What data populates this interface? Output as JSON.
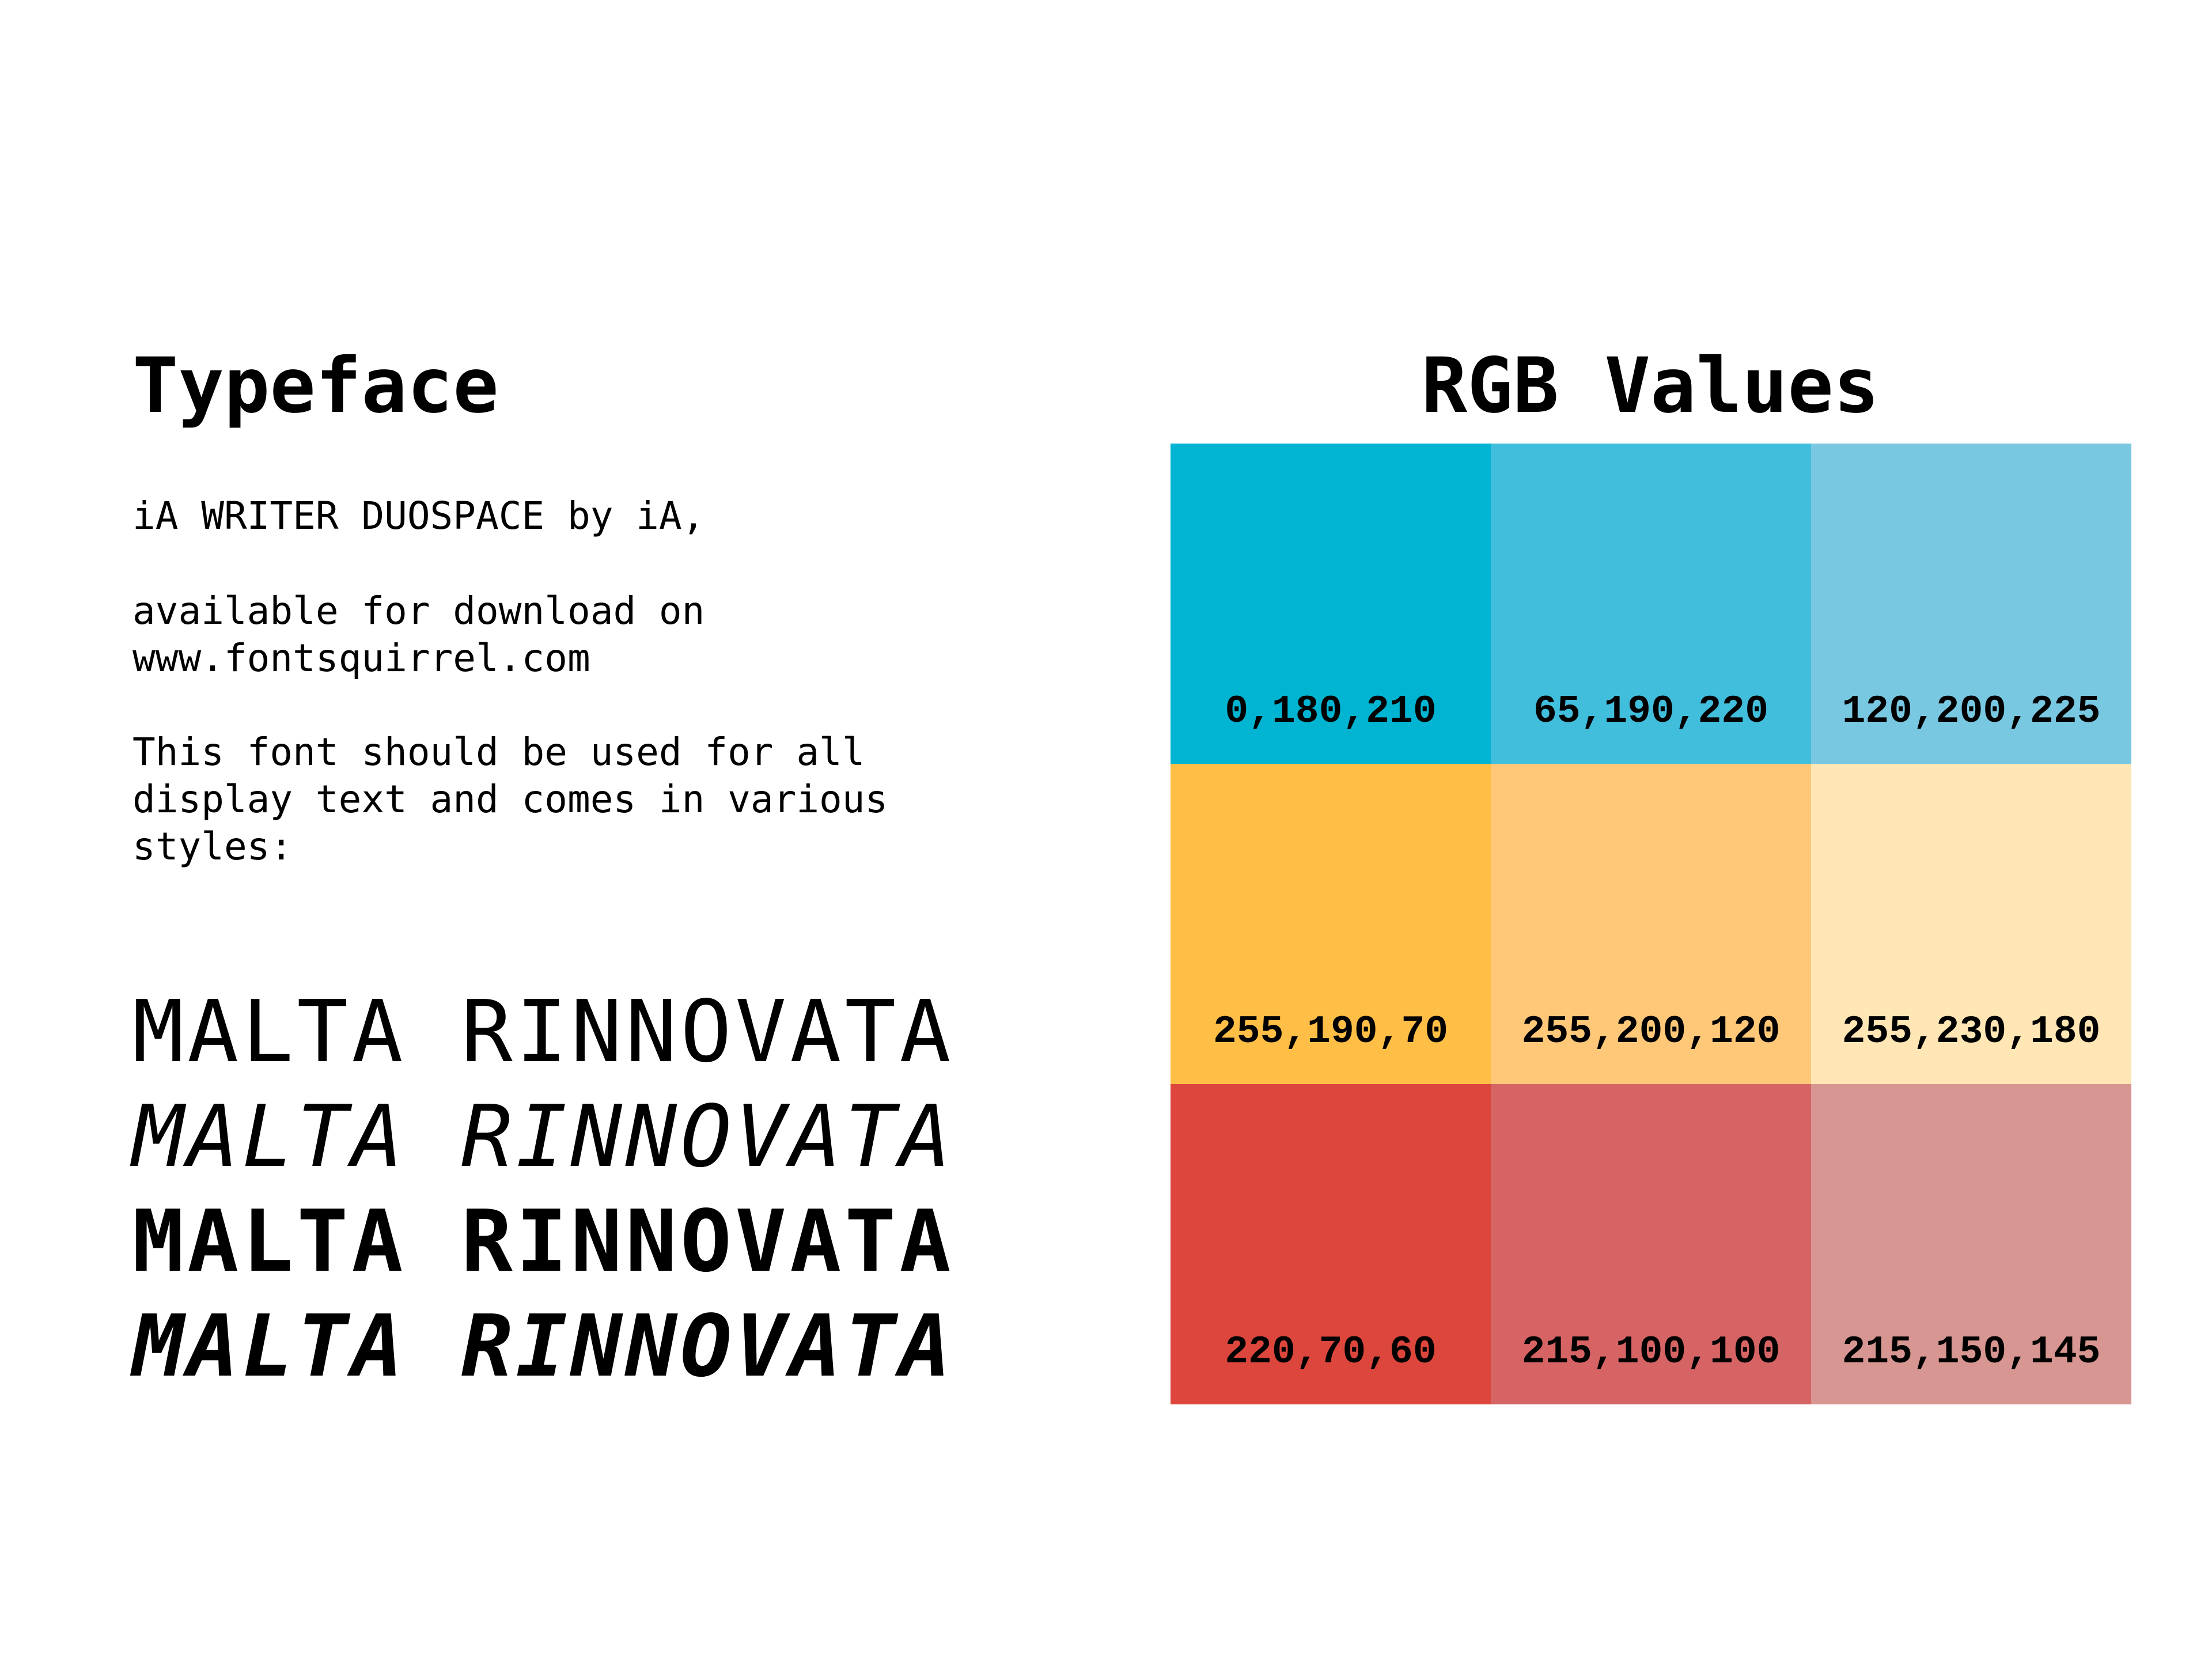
{
  "typeface": {
    "title": "Typeface",
    "line1": "iA WRITER DUOSPACE by iA,",
    "line2a": "available for download on",
    "line2b": "www.fontsquirrel.com",
    "line3a": "This font should be used for all",
    "line3b": "display text and comes in various",
    "line3c": "styles:",
    "samples": [
      "MALTA RINNOVATA",
      "MALTA RINNOVATA",
      "MALTA RINNOVATA",
      "MALTA RINNOVATA"
    ]
  },
  "rgb": {
    "title": "RGB Values",
    "swatches": [
      {
        "label": "0,180,210",
        "color": "#00B4D2"
      },
      {
        "label": "65,190,220",
        "color": "#41BEDC"
      },
      {
        "label": "120,200,225",
        "color": "#78C8E1"
      },
      {
        "label": "255,190,70",
        "color": "#FFBE46"
      },
      {
        "label": "255,200,120",
        "color": "#FFC878"
      },
      {
        "label": "255,230,180",
        "color": "#FFE6B4"
      },
      {
        "label": "220,70,60",
        "color": "#DC463C"
      },
      {
        "label": "215,100,100",
        "color": "#D76464"
      },
      {
        "label": "215,150,145",
        "color": "#D79691"
      }
    ]
  }
}
